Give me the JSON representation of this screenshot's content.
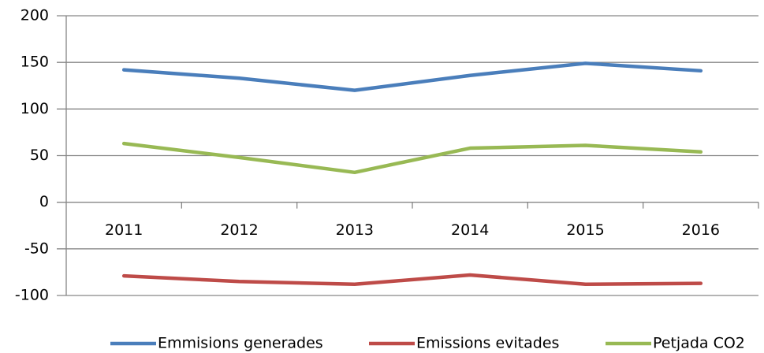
{
  "chart_data": {
    "type": "line",
    "categories": [
      "2011",
      "2012",
      "2013",
      "2014",
      "2015",
      "2016"
    ],
    "series": [
      {
        "name": "Emmisions generades",
        "color": "#4a7ebb",
        "values": [
          142,
          133,
          120,
          136,
          149,
          141
        ]
      },
      {
        "name": "Emissions evitades",
        "color": "#be4b48",
        "values": [
          -79,
          -85,
          -88,
          -78,
          -88,
          -87
        ]
      },
      {
        "name": "Petjada CO2",
        "color": "#98b954",
        "values": [
          63,
          48,
          32,
          58,
          61,
          54
        ]
      }
    ],
    "ylim": [
      -100,
      200
    ],
    "yticks": [
      -100,
      -50,
      0,
      50,
      100,
      150,
      200
    ],
    "grid": true
  }
}
